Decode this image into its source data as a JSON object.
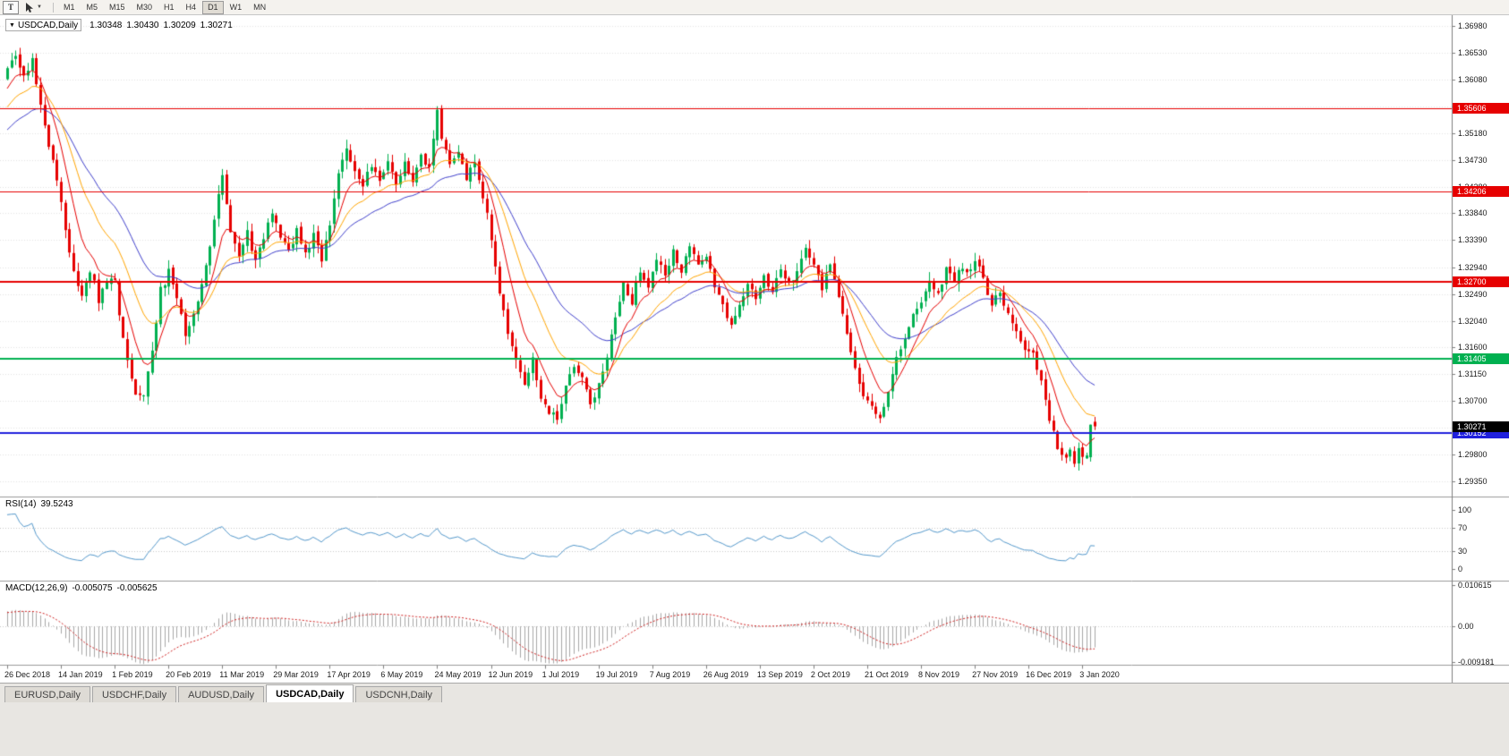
{
  "toolbar": {
    "text_tool_label": "T",
    "dropdown_caret_glyph": "▼",
    "timeframes": [
      "M1",
      "M5",
      "M15",
      "M30",
      "H1",
      "H4",
      "D1",
      "W1",
      "MN"
    ],
    "active_timeframe": "D1"
  },
  "window_tabs": {
    "items": [
      "EURUSD,Daily",
      "USDCHF,Daily",
      "AUDUSD,Daily",
      "USDCAD,Daily",
      "USDCNH,Daily"
    ],
    "active": "USDCAD,Daily"
  },
  "chart_data": {
    "type": "candlestick",
    "symbol": "USDCAD",
    "timeframe": "Daily",
    "title_symbol": "USDCAD,Daily",
    "dropdown_glyph": "▼",
    "ohlc": {
      "open": "1.30348",
      "high": "1.30430",
      "low": "1.30209",
      "close": "1.30271"
    },
    "grid_color": "#e4e4e4",
    "y_axis": {
      "min": 1.2914,
      "max": 1.371,
      "ticks": [
        "1.36980",
        "1.36530",
        "1.36080",
        "1.35630",
        "1.35180",
        "1.34730",
        "1.34280",
        "1.33840",
        "1.33390",
        "1.32940",
        "1.32490",
        "1.32040",
        "1.31600",
        "1.31150",
        "1.30700",
        "1.30250",
        "1.29800",
        "1.29350"
      ]
    },
    "x_axis": {
      "bars_per_label": 13,
      "labels": [
        "26 Dec 2018",
        "14 Jan 2019",
        "1 Feb 2019",
        "20 Feb 2019",
        "11 Mar 2019",
        "29 Mar 2019",
        "17 Apr 2019",
        "6 May 2019",
        "24 May 2019",
        "12 Jun 2019",
        "1 Jul 2019",
        "19 Jul 2019",
        "7 Aug 2019",
        "26 Aug 2019",
        "13 Sep 2019",
        "2 Oct 2019",
        "21 Oct 2019",
        "8 Nov 2019",
        "27 Nov 2019",
        "16 Dec 2019",
        "3 Jan 2020"
      ]
    },
    "candles": {
      "count": 264,
      "up_color": "#00b050",
      "down_color": "#e60000",
      "prehistory_anchors": [
        [
          -40,
          1.339
        ],
        [
          -30,
          1.3435
        ],
        [
          -20,
          1.349
        ],
        [
          -10,
          1.3552
        ],
        [
          -1,
          1.3605
        ]
      ],
      "path_anchors": [
        [
          0,
          1.3628
        ],
        [
          2,
          1.365
        ],
        [
          4,
          1.3618
        ],
        [
          6,
          1.364
        ],
        [
          8,
          1.3565
        ],
        [
          10,
          1.35
        ],
        [
          12,
          1.3445
        ],
        [
          14,
          1.3355
        ],
        [
          16,
          1.3282
        ],
        [
          18,
          1.325
        ],
        [
          20,
          1.3292
        ],
        [
          22,
          1.324
        ],
        [
          24,
          1.3262
        ],
        [
          26,
          1.3275
        ],
        [
          27,
          1.3215
        ],
        [
          29,
          1.314
        ],
        [
          31,
          1.3085
        ],
        [
          33,
          1.3078
        ],
        [
          35,
          1.315
        ],
        [
          37,
          1.3255
        ],
        [
          39,
          1.3285
        ],
        [
          41,
          1.3245
        ],
        [
          43,
          1.3185
        ],
        [
          45,
          1.3215
        ],
        [
          47,
          1.326
        ],
        [
          49,
          1.333
        ],
        [
          51,
          1.342
        ],
        [
          52,
          1.3445
        ],
        [
          54,
          1.3355
        ],
        [
          56,
          1.3318
        ],
        [
          58,
          1.335
        ],
        [
          60,
          1.33
        ],
        [
          62,
          1.3345
        ],
        [
          64,
          1.338
        ],
        [
          66,
          1.335
        ],
        [
          68,
          1.3322
        ],
        [
          70,
          1.3355
        ],
        [
          72,
          1.3315
        ],
        [
          74,
          1.3345
        ],
        [
          76,
          1.3305
        ],
        [
          78,
          1.3365
        ],
        [
          80,
          1.3445
        ],
        [
          82,
          1.3495
        ],
        [
          84,
          1.345
        ],
        [
          86,
          1.3428
        ],
        [
          88,
          1.3468
        ],
        [
          90,
          1.3442
        ],
        [
          92,
          1.3472
        ],
        [
          94,
          1.3435
        ],
        [
          96,
          1.3468
        ],
        [
          98,
          1.3442
        ],
        [
          100,
          1.3482
        ],
        [
          102,
          1.3455
        ],
        [
          104,
          1.3558
        ],
        [
          105,
          1.351
        ],
        [
          107,
          1.3465
        ],
        [
          109,
          1.3492
        ],
        [
          111,
          1.3445
        ],
        [
          113,
          1.3468
        ],
        [
          115,
          1.3415
        ],
        [
          117,
          1.3342
        ],
        [
          119,
          1.3245
        ],
        [
          121,
          1.3185
        ],
        [
          123,
          1.3135
        ],
        [
          125,
          1.3102
        ],
        [
          127,
          1.3138
        ],
        [
          129,
          1.3078
        ],
        [
          131,
          1.3052
        ],
        [
          133,
          1.3042
        ],
        [
          135,
          1.3092
        ],
        [
          137,
          1.3132
        ],
        [
          139,
          1.3108
        ],
        [
          141,
          1.3068
        ],
        [
          143,
          1.3095
        ],
        [
          145,
          1.3148
        ],
        [
          147,
          1.3205
        ],
        [
          149,
          1.3262
        ],
        [
          151,
          1.3238
        ],
        [
          153,
          1.3288
        ],
        [
          155,
          1.3262
        ],
        [
          157,
          1.3308
        ],
        [
          159,
          1.3275
        ],
        [
          161,
          1.3318
        ],
        [
          163,
          1.3288
        ],
        [
          165,
          1.3328
        ],
        [
          167,
          1.3298
        ],
        [
          169,
          1.3312
        ],
        [
          171,
          1.3262
        ],
        [
          173,
          1.3228
        ],
        [
          175,
          1.3192
        ],
        [
          177,
          1.3232
        ],
        [
          179,
          1.3272
        ],
        [
          181,
          1.3242
        ],
        [
          183,
          1.3282
        ],
        [
          185,
          1.3252
        ],
        [
          187,
          1.3292
        ],
        [
          189,
          1.3262
        ],
        [
          191,
          1.3292
        ],
        [
          193,
          1.3325
        ],
        [
          195,
          1.3305
        ],
        [
          197,
          1.3262
        ],
        [
          199,
          1.3292
        ],
        [
          201,
          1.3242
        ],
        [
          203,
          1.3185
        ],
        [
          205,
          1.3125
        ],
        [
          207,
          1.3082
        ],
        [
          209,
          1.3058
        ],
        [
          211,
          1.3045
        ],
        [
          213,
          1.3088
        ],
        [
          215,
          1.3138
        ],
        [
          217,
          1.3178
        ],
        [
          219,
          1.3218
        ],
        [
          221,
          1.3235
        ],
        [
          223,
          1.3268
        ],
        [
          225,
          1.3252
        ],
        [
          227,
          1.3288
        ],
        [
          229,
          1.3272
        ],
        [
          231,
          1.3298
        ],
        [
          233,
          1.3285
        ],
        [
          234,
          1.3308
        ],
        [
          236,
          1.3272
        ],
        [
          238,
          1.3235
        ],
        [
          240,
          1.3252
        ],
        [
          242,
          1.3212
        ],
        [
          244,
          1.3182
        ],
        [
          246,
          1.3162
        ],
        [
          248,
          1.3145
        ],
        [
          250,
          1.3098
        ],
        [
          252,
          1.3042
        ],
        [
          254,
          1.2992
        ],
        [
          256,
          1.2968
        ],
        [
          257,
          1.2988
        ],
        [
          258,
          1.2962
        ],
        [
          259,
          1.2992
        ],
        [
          260,
          1.2972
        ],
        [
          261,
          1.2985
        ],
        [
          262,
          1.3035
        ],
        [
          263,
          1.3027
        ]
      ]
    },
    "moving_averages": [
      {
        "period": 34,
        "method": "ema",
        "color": "#4040cc"
      },
      {
        "period": 18,
        "method": "ema",
        "color": "#ffa500"
      },
      {
        "period": 8,
        "method": "ema",
        "color": "#e60000"
      }
    ],
    "levels": [
      {
        "price": 1.35606,
        "label": "1.35606",
        "color": "#e60000",
        "line_width": 1,
        "kind": "resistance"
      },
      {
        "price": 1.34206,
        "label": "1.34206",
        "color": "#e60000",
        "line_width": 1,
        "kind": "resistance"
      },
      {
        "price": 1.327,
        "label": "1.32700",
        "color": "#e60000",
        "line_width": 2,
        "kind": "resistance"
      },
      {
        "price": 1.31405,
        "label": "1.31405",
        "color": "#00b050",
        "line_width": 2,
        "kind": "support"
      },
      {
        "price": 1.30152,
        "label": "1.30152",
        "color": "#2020dd",
        "line_width": 2,
        "kind": "support"
      }
    ],
    "current_price_badge": {
      "value": "1.30271",
      "bg": "#000000"
    }
  },
  "rsi_panel": {
    "name": "RSI(14)",
    "value": "39.5243",
    "period": 14,
    "line_color": "#5599cc",
    "guide_levels": [
      70,
      30
    ],
    "axis_labels": [
      {
        "v": 100,
        "text": "100"
      },
      {
        "v": 70,
        "text": "70"
      },
      {
        "v": 30,
        "text": "30"
      },
      {
        "v": 0,
        "text": "0"
      }
    ]
  },
  "macd_panel": {
    "name": "MACD(12,26,9)",
    "macd_value": "-0.005075",
    "signal_value": "-0.005625",
    "fast": 12,
    "slow": 26,
    "signal": 9,
    "histogram_color": "#a8a8a8",
    "signal_color": "#d02020",
    "axis_max": 0.010615,
    "axis_min": -0.009181,
    "axis_labels": [
      {
        "v": 0.010615,
        "text": "0.010615"
      },
      {
        "v": 0,
        "text": "0.00"
      },
      {
        "v": -0.009181,
        "text": "-0.009181"
      }
    ]
  }
}
